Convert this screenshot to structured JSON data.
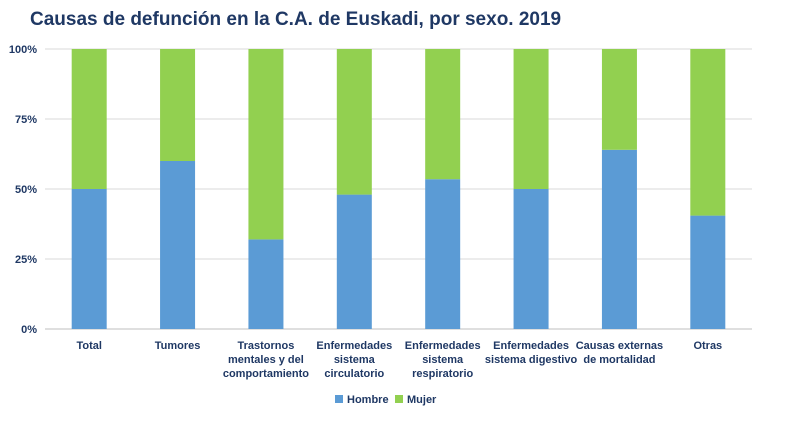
{
  "chart_data": {
    "type": "bar",
    "stacked": "percent",
    "title": "Causas de defunción en la C.A. de Euskadi, por sexo. 2019",
    "categories": [
      "Total",
      "Tumores",
      "Trastornos mentales y del comportamiento",
      "Enfermedades sistema circulatorio",
      "Enfermedades sistema respiratorio",
      "Enfermedades sistema digestivo",
      "Causas externas de mortalidad",
      "Otras"
    ],
    "category_lines": [
      [
        "Total"
      ],
      [
        "Tumores"
      ],
      [
        "Trastornos",
        "mentales y del",
        "comportamiento"
      ],
      [
        "Enfermedades",
        "sistema",
        "circulatorio"
      ],
      [
        "Enfermedades",
        "sistema",
        "respiratorio"
      ],
      [
        "Enfermedades",
        "sistema digestivo"
      ],
      [
        "Causas externas",
        "de mortalidad"
      ],
      [
        "Otras"
      ]
    ],
    "series": [
      {
        "name": "Hombre",
        "color": "#5b9bd5",
        "values": [
          50,
          60,
          32,
          48,
          53.5,
          50,
          64,
          40.5
        ]
      },
      {
        "name": "Mujer",
        "color": "#92d050",
        "values": [
          50,
          40,
          68,
          52,
          46.5,
          50,
          36,
          59.5
        ]
      }
    ],
    "yticks": [
      "0%",
      "25%",
      "50%",
      "75%",
      "100%"
    ],
    "ylim": [
      0,
      100
    ],
    "grid": true,
    "legend": "bottom"
  }
}
